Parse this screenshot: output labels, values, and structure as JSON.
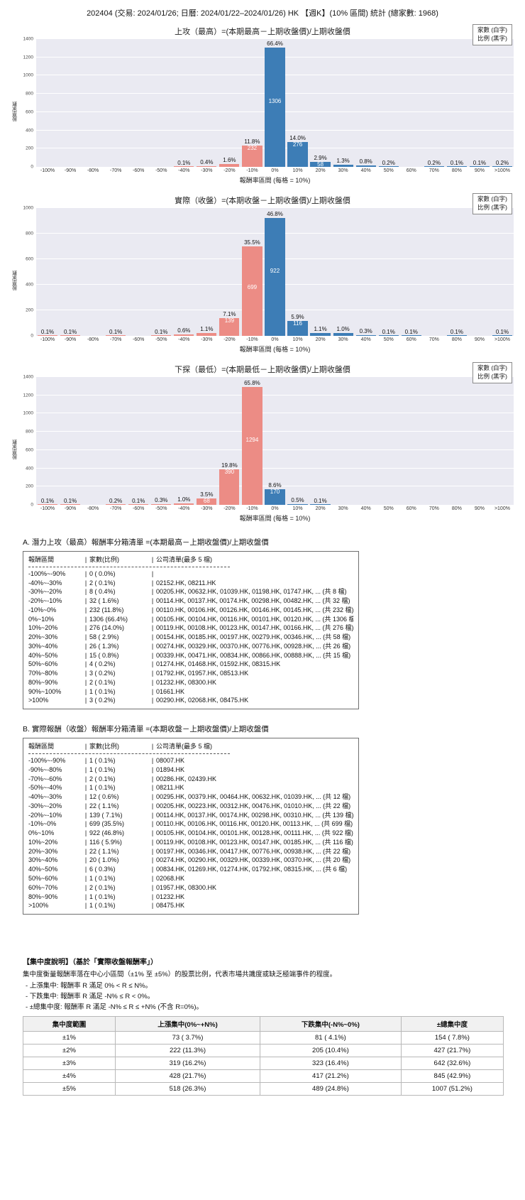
{
  "page": {
    "title": "202404 (交易: 2024/01/26; 日曆: 2024/01/22–2024/01/26) HK 【週K】(10% 區間) 統計 (總家數: 1968)"
  },
  "chart_style": {
    "negative_color": "#ec8c85",
    "positive_color": "#3d7db6",
    "plot_background": "#eaeaf2",
    "count_label_color": "#ffffff",
    "percent_label_color": "#111111"
  },
  "axis": {
    "ylabel": "股票家數",
    "xlabel": "報酬率區間 (每格 = 10%)"
  },
  "legend": {
    "line1": "家數 (白字)",
    "line2": "比例 (黑字)"
  },
  "chart_data": [
    {
      "type": "bar",
      "title": "上攻（最高）=(本期最高－上期收盤價)/上期收盤價",
      "xlabel": "報酬率區間 (每格 = 10%)",
      "ylabel": "股票家數",
      "legend": [
        "家數 (白字)",
        "比例 (黑字)"
      ],
      "legend_position": "top-right",
      "grid": true,
      "categories": [
        "-100%",
        "-90%",
        "-80%",
        "-70%",
        "-60%",
        "-50%",
        "-40%",
        "-30%",
        "-20%",
        "-10%",
        "0%",
        "10%",
        "20%",
        "30%",
        "40%",
        "50%",
        "60%",
        "70%",
        "80%",
        "90%",
        ">100%"
      ],
      "counts": [
        0,
        0,
        0,
        0,
        0,
        0,
        2,
        8,
        32,
        232,
        1306,
        276,
        58,
        26,
        15,
        4,
        0,
        3,
        2,
        1,
        3
      ],
      "percent_labels": [
        "",
        "",
        "",
        "",
        "",
        "",
        "0.1%",
        "0.4%",
        "1.6%",
        "11.8%",
        "66.4%",
        "14.0%",
        "2.9%",
        "1.3%",
        "0.8%",
        "0.2%",
        "",
        "0.2%",
        "0.1%",
        "0.1%",
        "0.2%"
      ],
      "ylim": [
        0,
        1400
      ],
      "yticks": [
        0,
        200,
        400,
        600,
        800,
        1000,
        1200,
        1400
      ]
    },
    {
      "type": "bar",
      "title": "實際（收盤）=(本期收盤－上期收盤價)/上期收盤價",
      "xlabel": "報酬率區間 (每格 = 10%)",
      "ylabel": "股票家數",
      "legend": [
        "家數 (白字)",
        "比例 (黑字)"
      ],
      "legend_position": "top-right",
      "grid": true,
      "categories": [
        "-100%",
        "-90%",
        "-80%",
        "-70%",
        "-60%",
        "-50%",
        "-40%",
        "-30%",
        "-20%",
        "-10%",
        "0%",
        "10%",
        "20%",
        "30%",
        "40%",
        "50%",
        "60%",
        "70%",
        "80%",
        "90%",
        ">100%"
      ],
      "counts": [
        1,
        1,
        0,
        2,
        0,
        1,
        12,
        22,
        139,
        699,
        922,
        116,
        22,
        20,
        6,
        1,
        2,
        0,
        1,
        0,
        1
      ],
      "percent_labels": [
        "0.1%",
        "0.1%",
        "",
        "0.1%",
        "",
        "0.1%",
        "0.6%",
        "1.1%",
        "7.1%",
        "35.5%",
        "46.8%",
        "5.9%",
        "1.1%",
        "1.0%",
        "0.3%",
        "0.1%",
        "0.1%",
        "",
        "0.1%",
        "",
        "0.1%"
      ],
      "ylim": [
        0,
        1000
      ],
      "yticks": [
        0,
        200,
        400,
        600,
        800,
        1000
      ]
    },
    {
      "type": "bar",
      "title": "下探（最低）=(本期最低－上期收盤價)/上期收盤價",
      "xlabel": "報酬率區間 (每格 = 10%)",
      "ylabel": "股票家數",
      "legend": [
        "家數 (白字)",
        "比例 (黑字)"
      ],
      "legend_position": "top-right",
      "grid": true,
      "categories": [
        "-100%",
        "-90%",
        "-80%",
        "-70%",
        "-60%",
        "-50%",
        "-40%",
        "-30%",
        "-20%",
        "-10%",
        "0%",
        "10%",
        "20%",
        "30%",
        "40%",
        "50%",
        "60%",
        "70%",
        "80%",
        "90%",
        ">100%"
      ],
      "counts": [
        2,
        2,
        0,
        4,
        2,
        5,
        19,
        68,
        390,
        1294,
        170,
        10,
        2,
        0,
        0,
        0,
        0,
        0,
        0,
        0,
        0
      ],
      "percent_labels": [
        "0.1%",
        "0.1%",
        "",
        "0.2%",
        "0.1%",
        "0.3%",
        "1.0%",
        "3.5%",
        "19.8%",
        "65.8%",
        "8.6%",
        "0.5%",
        "0.1%",
        "",
        "",
        "",
        "",
        "",
        "",
        "",
        ""
      ],
      "ylim": [
        0,
        1400
      ],
      "yticks": [
        0,
        200,
        400,
        600,
        800,
        1000,
        1200,
        1400
      ]
    }
  ],
  "section_a": {
    "heading": "A. 潛力上攻（最高）報酬率分箱清單 =(本期最高－上期收盤價)/上期收盤價",
    "col_headers": {
      "range": "報酬區間",
      "count": "家數(比例)",
      "companies": "公司清單(最多 5 檔)"
    },
    "rows": [
      {
        "range": "-100%~-90%",
        "count": "0 ( 0.0%)",
        "companies": ""
      },
      {
        "range": "-40%~-30%",
        "count": "2 ( 0.1%)",
        "companies": "02152.HK, 08211.HK"
      },
      {
        "range": "-30%~-20%",
        "count": "8 ( 0.4%)",
        "companies": "00205.HK, 00632.HK, 01039.HK, 01198.HK, 01747.HK, ... (共 8 檔)"
      },
      {
        "range": "-20%~-10%",
        "count": "32 ( 1.6%)",
        "companies": "00114.HK, 00137.HK, 00174.HK, 00298.HK, 00482.HK, ... (共 32 檔)"
      },
      {
        "range": "-10%~0%",
        "count": "232 (11.8%)",
        "companies": "00110.HK, 00106.HK, 00126.HK, 00146.HK, 00145.HK, ... (共 232 檔)"
      },
      {
        "range": "0%~10%",
        "count": "1306 (66.4%)",
        "companies": "00105.HK, 00104.HK, 00116.HK, 00101.HK, 00120.HK, ... (共 1306 檔)"
      },
      {
        "range": "10%~20%",
        "count": "276 (14.0%)",
        "companies": "00119.HK, 00108.HK, 00123.HK, 00147.HK, 00166.HK, ... (共 276 檔)"
      },
      {
        "range": "20%~30%",
        "count": "58 ( 2.9%)",
        "companies": "00154.HK, 00185.HK, 00197.HK, 00279.HK, 00346.HK, ... (共 58 檔)"
      },
      {
        "range": "30%~40%",
        "count": "26 ( 1.3%)",
        "companies": "00274.HK, 00329.HK, 00370.HK, 00776.HK, 00928.HK, ... (共 26 檔)"
      },
      {
        "range": "40%~50%",
        "count": "15 ( 0.8%)",
        "companies": "00339.HK, 00471.HK, 00834.HK, 00866.HK, 00888.HK, ... (共 15 檔)"
      },
      {
        "range": "50%~60%",
        "count": "4 ( 0.2%)",
        "companies": "01274.HK, 01468.HK, 01592.HK, 08315.HK"
      },
      {
        "range": "70%~80%",
        "count": "3 ( 0.2%)",
        "companies": "01792.HK, 01957.HK, 08513.HK"
      },
      {
        "range": "80%~90%",
        "count": "2 ( 0.1%)",
        "companies": "01232.HK, 08300.HK"
      },
      {
        "range": "90%~100%",
        "count": "1 ( 0.1%)",
        "companies": "01661.HK"
      },
      {
        "range": ">100%",
        "count": "3 ( 0.2%)",
        "companies": "00290.HK, 02068.HK, 08475.HK"
      }
    ]
  },
  "section_b": {
    "heading": "B. 實際報酬（收盤）報酬率分箱清單 =(本期收盤－上期收盤價)/上期收盤價",
    "col_headers": {
      "range": "報酬區間",
      "count": "家數(比例)",
      "companies": "公司清單(最多 5 檔)"
    },
    "rows": [
      {
        "range": "-100%~-90%",
        "count": "1 ( 0.1%)",
        "companies": "08007.HK"
      },
      {
        "range": "-90%~-80%",
        "count": "1 ( 0.1%)",
        "companies": "01894.HK"
      },
      {
        "range": "-70%~-60%",
        "count": "2 ( 0.1%)",
        "companies": "00286.HK, 02439.HK"
      },
      {
        "range": "-50%~-40%",
        "count": "1 ( 0.1%)",
        "companies": "08211.HK"
      },
      {
        "range": "-40%~-30%",
        "count": "12 ( 0.6%)",
        "companies": "00295.HK, 00379.HK, 00464.HK, 00632.HK, 01039.HK, ... (共 12 檔)"
      },
      {
        "range": "-30%~-20%",
        "count": "22 ( 1.1%)",
        "companies": "00205.HK, 00223.HK, 00312.HK, 00476.HK, 01010.HK, ... (共 22 檔)"
      },
      {
        "range": "-20%~-10%",
        "count": "139 ( 7.1%)",
        "companies": "00114.HK, 00137.HK, 00174.HK, 00298.HK, 00310.HK, ... (共 139 檔)"
      },
      {
        "range": "-10%~0%",
        "count": "699 (35.5%)",
        "companies": "00110.HK, 00106.HK, 00116.HK, 00120.HK, 00113.HK, ... (共 699 檔)"
      },
      {
        "range": "0%~10%",
        "count": "922 (46.8%)",
        "companies": "00105.HK, 00104.HK, 00101.HK, 00128.HK, 00111.HK, ... (共 922 檔)"
      },
      {
        "range": "10%~20%",
        "count": "116 ( 5.9%)",
        "companies": "00119.HK, 00108.HK, 00123.HK, 00147.HK, 00185.HK, ... (共 116 檔)"
      },
      {
        "range": "20%~30%",
        "count": "22 ( 1.1%)",
        "companies": "00197.HK, 00346.HK, 00417.HK, 00776.HK, 00938.HK, ... (共 22 檔)"
      },
      {
        "range": "30%~40%",
        "count": "20 ( 1.0%)",
        "companies": "00274.HK, 00290.HK, 00329.HK, 00339.HK, 00370.HK, ... (共 20 檔)"
      },
      {
        "range": "40%~50%",
        "count": "6 ( 0.3%)",
        "companies": "00834.HK, 01269.HK, 01274.HK, 01792.HK, 08315.HK, ... (共 6 檔)"
      },
      {
        "range": "50%~60%",
        "count": "1 ( 0.1%)",
        "companies": "02068.HK"
      },
      {
        "range": "60%~70%",
        "count": "2 ( 0.1%)",
        "companies": "01957.HK, 08300.HK"
      },
      {
        "range": "80%~90%",
        "count": "1 ( 0.1%)",
        "companies": "01232.HK"
      },
      {
        "range": ">100%",
        "count": "1 ( 0.1%)",
        "companies": "08475.HK"
      }
    ]
  },
  "concentration": {
    "heading": "【集中度說明】（基於「實際收盤報酬率」）",
    "description": "集中度衡量報酬率落在中心小區間（±1% 至 ±5%）的股票比例，代表市場共識度或缺乏極端事件的程度。",
    "bullets": [
      "- 上漲集中: 報酬率 R 滿足 0% < R ≤ N%。",
      "- 下跌集中: 報酬率 R 滿足 -N% ≤ R < 0%。",
      "- ±總集中度: 報酬率 R 滿足 -N% ≤ R ≤ +N% (不含 R=0%)。"
    ],
    "table": {
      "headers": [
        "集中度範圍",
        "上漲集中(0%~+N%)",
        "下跌集中(-N%~0%)",
        "±總集中度"
      ],
      "rows": [
        [
          "±1%",
          "73 ( 3.7%)",
          "81 ( 4.1%)",
          "154 ( 7.8%)"
        ],
        [
          "±2%",
          "222 (11.3%)",
          "205 (10.4%)",
          "427 (21.7%)"
        ],
        [
          "±3%",
          "319 (16.2%)",
          "323 (16.4%)",
          "642 (32.6%)"
        ],
        [
          "±4%",
          "428 (21.7%)",
          "417 (21.2%)",
          "845 (42.9%)"
        ],
        [
          "±5%",
          "518 (26.3%)",
          "489 (24.8%)",
          "1007 (51.2%)"
        ]
      ]
    }
  }
}
